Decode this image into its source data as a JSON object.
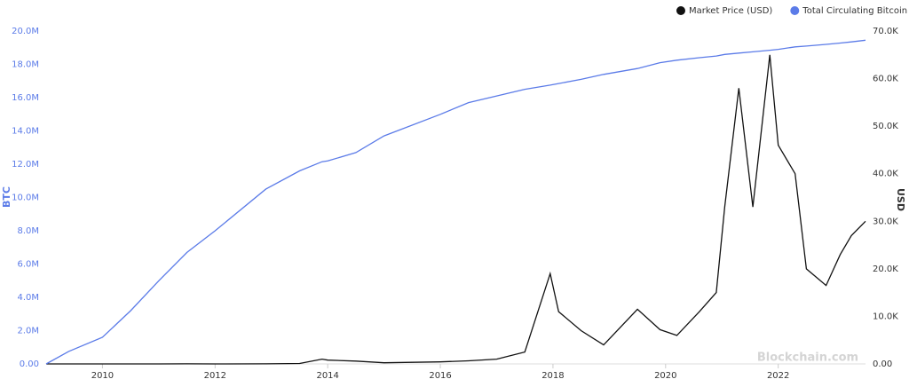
{
  "chart_data": {
    "type": "line",
    "legend": "top-right",
    "y_label": "BTC",
    "y2_label": "USD",
    "watermark": "Blockchain.com",
    "x": [
      2009.0,
      2009.4,
      2010.0,
      2010.5,
      2011.0,
      2011.5,
      2012.0,
      2012.9,
      2013.5,
      2013.9,
      2014.0,
      2014.5,
      2015.0,
      2016.0,
      2016.5,
      2017.0,
      2017.5,
      2017.95,
      2018.1,
      2018.5,
      2018.9,
      2019.5,
      2019.9,
      2020.2,
      2020.6,
      2020.9,
      2021.05,
      2021.3,
      2021.55,
      2021.85,
      2022.0,
      2022.3,
      2022.5,
      2022.85,
      2023.1,
      2023.3,
      2023.55
    ],
    "xlim": [
      2009.0,
      2023.55
    ],
    "xticks": [
      2010,
      2012,
      2014,
      2016,
      2018,
      2020,
      2022
    ],
    "ylim": [
      0,
      20000000
    ],
    "yticks": [
      {
        "value": 0,
        "label": "0.00"
      },
      {
        "value": 2000000,
        "label": "2.0M"
      },
      {
        "value": 4000000,
        "label": "4.0M"
      },
      {
        "value": 6000000,
        "label": "6.0M"
      },
      {
        "value": 8000000,
        "label": "8.0M"
      },
      {
        "value": 10000000,
        "label": "10.0M"
      },
      {
        "value": 12000000,
        "label": "12.0M"
      },
      {
        "value": 14000000,
        "label": "14.0M"
      },
      {
        "value": 16000000,
        "label": "16.0M"
      },
      {
        "value": 18000000,
        "label": "18.0M"
      },
      {
        "value": 20000000,
        "label": "20.0M"
      }
    ],
    "y2lim": [
      0,
      70000
    ],
    "y2ticks": [
      {
        "value": 0,
        "label": "0.00"
      },
      {
        "value": 10000,
        "label": "10.0K"
      },
      {
        "value": 20000,
        "label": "20.0K"
      },
      {
        "value": 30000,
        "label": "30.0K"
      },
      {
        "value": 40000,
        "label": "40.0K"
      },
      {
        "value": 50000,
        "label": "50.0K"
      },
      {
        "value": 60000,
        "label": "60.0K"
      },
      {
        "value": 70000,
        "label": "70.0K"
      }
    ],
    "series": [
      {
        "name": "Market Price (USD)",
        "color": "#111111",
        "axis": "y2",
        "values": [
          0,
          0,
          0,
          0.07,
          0.3,
          15,
          5,
          13,
          100,
          1000,
          800,
          600,
          250,
          430,
          650,
          1000,
          2500,
          19000,
          11000,
          7000,
          4000,
          11500,
          7200,
          6000,
          11000,
          15000,
          33000,
          58000,
          33000,
          65000,
          46000,
          40000,
          20000,
          16500,
          23000,
          27000,
          30000
        ]
      },
      {
        "name": "Total Circulating Bitcoin",
        "color": "#5b7be8",
        "values": [
          0,
          750000,
          1600000,
          3200000,
          5000000,
          6700000,
          8000000,
          10500000,
          11600000,
          12150000,
          12200000,
          12700000,
          13700000,
          15000000,
          15700000,
          16100000,
          16500000,
          16750000,
          16850000,
          17100000,
          17400000,
          17750000,
          18100000,
          18250000,
          18400000,
          18500000,
          18600000,
          18680000,
          18750000,
          18850000,
          18900000,
          19050000,
          19100000,
          19200000,
          19280000,
          19350000,
          19450000
        ]
      }
    ]
  }
}
